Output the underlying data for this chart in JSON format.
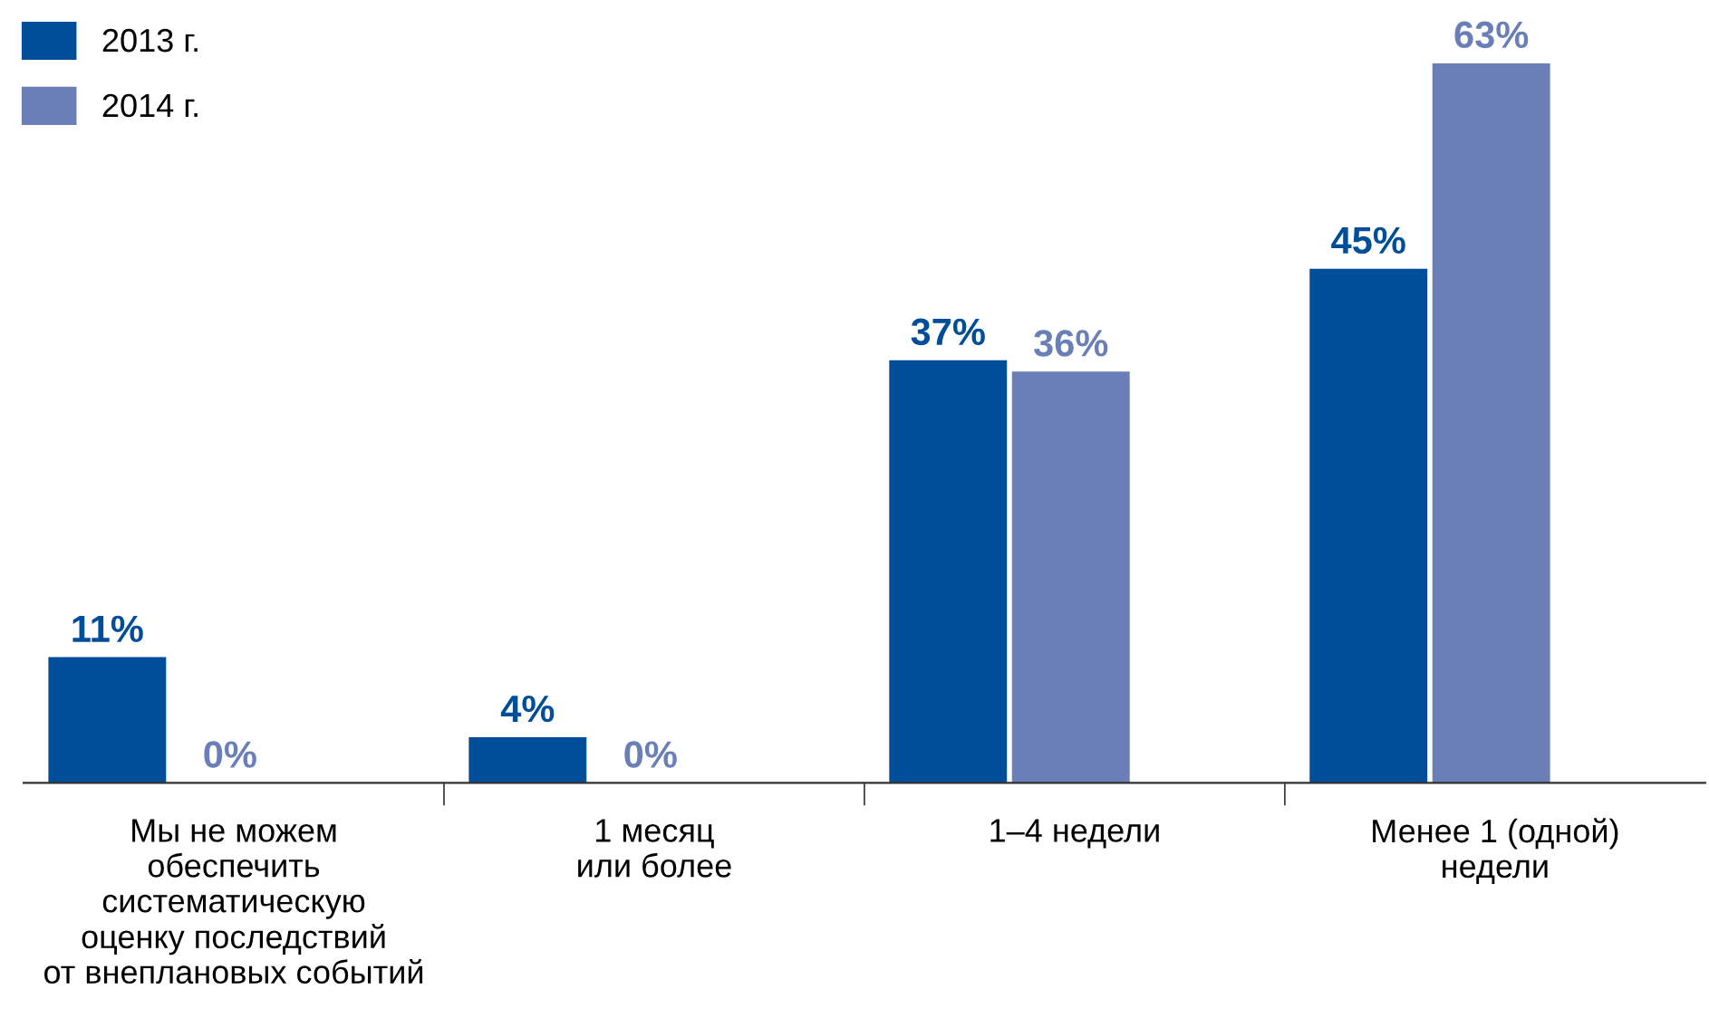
{
  "chart_data": {
    "type": "bar",
    "categories": [
      "Мы не можем\nобеспечить\nсистематическую\nоценку последствий\nот внеплановых событий",
      "1 месяц\nили более",
      "1–4 недели",
      "Менее 1 (одной)\nнедели"
    ],
    "series": [
      {
        "name": "2013 г.",
        "color": "#004e9a",
        "values": [
          11,
          4,
          37,
          45
        ],
        "value_labels": [
          "11%",
          "4%",
          "37%",
          "45%"
        ]
      },
      {
        "name": "2014 г.",
        "color": "#6a7fb8",
        "values": [
          0,
          0,
          36,
          63
        ],
        "value_labels": [
          "0%",
          "0%",
          "36%",
          "63%"
        ]
      }
    ],
    "legend": "top left",
    "grid": false
  }
}
